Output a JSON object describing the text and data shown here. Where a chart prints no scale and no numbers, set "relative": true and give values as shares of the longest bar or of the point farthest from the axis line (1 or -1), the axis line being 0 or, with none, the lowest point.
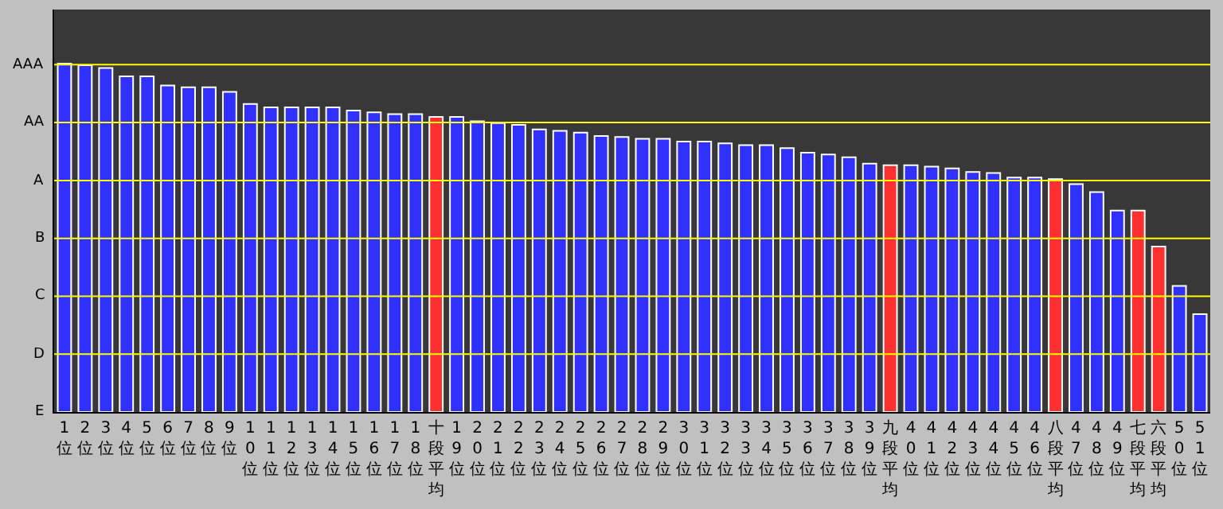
{
  "chart_data": {
    "type": "bar",
    "categories": [
      "1位",
      "2位",
      "3位",
      "4位",
      "5位",
      "6位",
      "7位",
      "8位",
      "9位",
      "10位",
      "11位",
      "12位",
      "13位",
      "14位",
      "15位",
      "16位",
      "17位",
      "18位",
      "十段平均",
      "19位",
      "20位",
      "21位",
      "22位",
      "23位",
      "24位",
      "25位",
      "26位",
      "27位",
      "28位",
      "29位",
      "30位",
      "31位",
      "32位",
      "33位",
      "34位",
      "35位",
      "36位",
      "37位",
      "38位",
      "39位",
      "九段平均",
      "40位",
      "41位",
      "42位",
      "43位",
      "44位",
      "45位",
      "46位",
      "八段平均",
      "47位",
      "48位",
      "49位",
      "七段平均",
      "六段平均",
      "50位",
      "51位"
    ],
    "values": [
      1,
      0.995,
      0.987,
      0.963,
      0.963,
      0.937,
      0.932,
      0.932,
      0.919,
      0.884,
      0.874,
      0.874,
      0.874,
      0.874,
      0.865,
      0.86,
      0.855,
      0.855,
      0.847,
      0.847,
      0.834,
      0.829,
      0.824,
      0.811,
      0.807,
      0.802,
      0.792,
      0.789,
      0.784,
      0.784,
      0.776,
      0.776,
      0.771,
      0.766,
      0.766,
      0.757,
      0.744,
      0.739,
      0.731,
      0.713,
      0.708,
      0.708,
      0.704,
      0.699,
      0.689,
      0.686,
      0.673,
      0.673,
      0.668,
      0.654,
      0.631,
      0.578,
      0.578,
      0.475,
      0.362,
      0.281
    ],
    "colors": [
      "#3030ff",
      "#3030ff",
      "#3030ff",
      "#3030ff",
      "#3030ff",
      "#3030ff",
      "#3030ff",
      "#3030ff",
      "#3030ff",
      "#3030ff",
      "#3030ff",
      "#3030ff",
      "#3030ff",
      "#3030ff",
      "#3030ff",
      "#3030ff",
      "#3030ff",
      "#3030ff",
      "#ff3030",
      "#3030ff",
      "#3030ff",
      "#3030ff",
      "#3030ff",
      "#3030ff",
      "#3030ff",
      "#3030ff",
      "#3030ff",
      "#3030ff",
      "#3030ff",
      "#3030ff",
      "#3030ff",
      "#3030ff",
      "#3030ff",
      "#3030ff",
      "#3030ff",
      "#3030ff",
      "#3030ff",
      "#3030ff",
      "#3030ff",
      "#3030ff",
      "#ff3030",
      "#3030ff",
      "#3030ff",
      "#3030ff",
      "#3030ff",
      "#3030ff",
      "#3030ff",
      "#3030ff",
      "#ff3030",
      "#3030ff",
      "#3030ff",
      "#3030ff",
      "#ff3030",
      "#ff3030",
      "#3030ff",
      "#3030ff"
    ],
    "relative": true,
    "annotations": [
      "E"
    ],
    "ref_lines": [
      {
        "axis": "y",
        "value": 0.166,
        "label": "D",
        "color": "#ffff00"
      },
      {
        "axis": "y",
        "value": 0.332,
        "label": "C",
        "color": "#ffff00"
      },
      {
        "axis": "y",
        "value": 0.498,
        "label": "B",
        "color": "#ffff00"
      },
      {
        "axis": "y",
        "value": 0.664,
        "label": "A",
        "color": "#ffff00"
      },
      {
        "axis": "y",
        "value": 0.831,
        "label": "AA",
        "color": "#ffff00"
      },
      {
        "axis": "y",
        "value": 0.997,
        "label": "AAA",
        "color": "#ffff00"
      }
    ]
  }
}
